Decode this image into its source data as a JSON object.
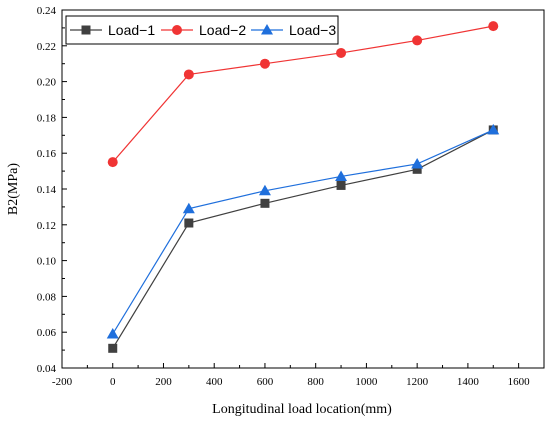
{
  "chart_data": {
    "type": "line",
    "title": "",
    "xlabel": "Longitudinal load location(mm)",
    "ylabel": "B2(MPa)",
    "xlim": [
      -200,
      1700
    ],
    "ylim": [
      0.04,
      0.24
    ],
    "x_ticks": [
      -200,
      0,
      200,
      400,
      600,
      800,
      1000,
      1200,
      1400,
      1600
    ],
    "y_ticks": [
      0.04,
      0.06,
      0.08,
      0.1,
      0.12,
      0.14,
      0.16,
      0.18,
      0.2,
      0.22,
      0.24
    ],
    "x": [
      0,
      300,
      600,
      900,
      1200,
      1500
    ],
    "legend_position": "top-left",
    "grid": false,
    "series": [
      {
        "name": "Load−1",
        "color": "#404040",
        "marker": "square",
        "values": [
          0.051,
          0.121,
          0.132,
          0.142,
          0.151,
          0.173
        ]
      },
      {
        "name": "Load−2",
        "color": "#f03434",
        "marker": "circle",
        "values": [
          0.155,
          0.204,
          0.21,
          0.216,
          0.223,
          0.231
        ]
      },
      {
        "name": "Load−3",
        "color": "#1f6fdc",
        "marker": "triangle",
        "values": [
          0.059,
          0.129,
          0.139,
          0.147,
          0.154,
          0.173
        ]
      }
    ]
  }
}
